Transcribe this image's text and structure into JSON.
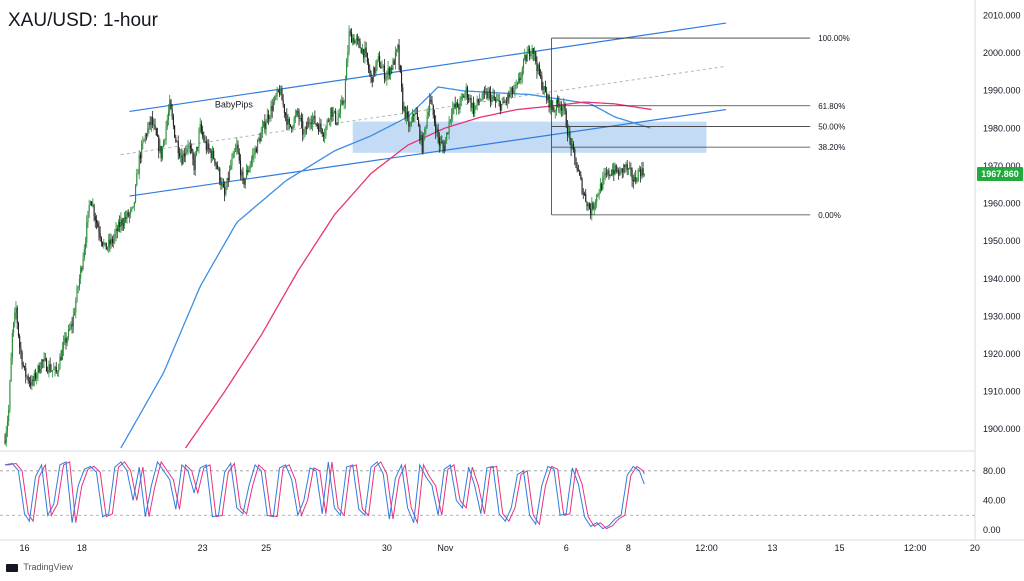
{
  "header": {
    "title": "XAU/USD: 1-hour"
  },
  "footer": {
    "brand": "TradingView"
  },
  "colors": {
    "up_candle": "#2a8c3a",
    "down_candle": "#1e1e1e",
    "channel": "#2f7be0",
    "zone": "#9cc3f0",
    "ma_fast": "#3d8fe3",
    "ma_slow": "#e8337a",
    "price_tag": "#22ab3c",
    "stoch_k": "#2f7be0",
    "stoch_d": "#e8337a"
  },
  "icons": {
    "brand": "tradingview-logo-icon"
  },
  "chart_data": [
    {
      "type": "candlestick",
      "title": "XAU/USD: 1-hour",
      "current_price": {
        "value": 1967.86,
        "label": "1967.860"
      },
      "y_axis": {
        "range": [
          1895,
          2012
        ],
        "ticks": [
          1900,
          1910,
          1920,
          1930,
          1940,
          1950,
          1960,
          1970,
          1980,
          1990,
          2000,
          2010
        ],
        "tick_labels": [
          "1900.000",
          "1910.000",
          "1920.000",
          "1930.000",
          "1940.000",
          "1950.000",
          "1960.000",
          "1970.000",
          "1980.000",
          "1990.000",
          "2000.000",
          "2010.000"
        ]
      },
      "x_axis": {
        "labels": [
          "16",
          "18",
          "23",
          "25",
          "30",
          "Nov",
          "6",
          "8",
          "12:00",
          "13",
          "15",
          "12:00",
          "20"
        ],
        "label_index": [
          16,
          63,
          162,
          214,
          313,
          361,
          460,
          511,
          575,
          629,
          684,
          746,
          795
        ]
      },
      "price_path": {
        "index": [
          0,
          3,
          6,
          9,
          12,
          16,
          22,
          30,
          42,
          48,
          55,
          62,
          66,
          70,
          75,
          82,
          88,
          95,
          105,
          110,
          115,
          120,
          128,
          135,
          140,
          145,
          150,
          155,
          160,
          165,
          172,
          180,
          185,
          190,
          195,
          200,
          206,
          215,
          225,
          233,
          240,
          245,
          250,
          256,
          262,
          267,
          272,
          278,
          282,
          288,
          295,
          300,
          306,
          312,
          318,
          322,
          326,
          332,
          336,
          342,
          348,
          352,
          356,
          360,
          366,
          372,
          378,
          384,
          390,
          396,
          402,
          408,
          414,
          420,
          426,
          432,
          438,
          444,
          450,
          454,
          458,
          462,
          466,
          470,
          474,
          480,
          486,
          492,
          498,
          504,
          508,
          512,
          516,
          520,
          524
        ],
        "close": [
          1898.0,
          1905.0,
          1925.0,
          1932.0,
          1922.0,
          1915.0,
          1912.0,
          1918.0,
          1915.0,
          1922.0,
          1928.0,
          1942.0,
          1951.0,
          1962.0,
          1955.0,
          1948.0,
          1950.0,
          1955.0,
          1958.0,
          1972.0,
          1978.0,
          1982.0,
          1973.0,
          1986.0,
          1977.0,
          1972.0,
          1976.0,
          1970.0,
          1980.0,
          1975.0,
          1972.0,
          1962.0,
          1970.0,
          1975.0,
          1965.0,
          1970.0,
          1975.0,
          1983.0,
          1990.0,
          1980.0,
          1984.0,
          1978.0,
          1983.0,
          1981.0,
          1979.0,
          1985.0,
          1982.0,
          1988.0,
          2005.0,
          2003.0,
          2000.0,
          1993.0,
          1998.0,
          1994.0,
          1997.0,
          2001.0,
          1986.0,
          1980.0,
          1985.0,
          1975.0,
          1988.0,
          1982.0,
          1976.0,
          1975.0,
          1985.0,
          1986.0,
          1990.0,
          1985.0,
          1988.0,
          1989.0,
          1987.0,
          1986.0,
          1989.0,
          1991.0,
          1998.0,
          2002.0,
          1994.0,
          1988.0,
          1985.0,
          1987.0,
          1985.0,
          1978.0,
          1973.0,
          1968.0,
          1963.0,
          1958.0,
          1963.0,
          1967.0,
          1969.0,
          1968.0,
          1970.0,
          1968.0,
          1966.0,
          1969.0,
          1967.86
        ]
      },
      "rising_channel": {
        "upper": {
          "from": [
            102,
            1984.5
          ],
          "to": [
            591,
            2008.0
          ]
        },
        "lower": {
          "from": [
            102,
            1962.0
          ],
          "to": [
            591,
            1985.0
          ]
        },
        "midline": {
          "from": [
            95,
            1973.0
          ],
          "to": [
            591,
            1996.5
          ]
        }
      },
      "fibonacci": {
        "from_index": 448,
        "to_index": 660,
        "levels": [
          {
            "label": "100.00%",
            "value": 2004.0
          },
          {
            "label": "61.80%",
            "value": 1986.0
          },
          {
            "label": "50.00%",
            "value": 1980.5
          },
          {
            "label": "38.20%",
            "value": 1975.0
          },
          {
            "label": "0.00%",
            "value": 1957.0
          }
        ]
      },
      "zone": {
        "from_index": 285,
        "to_index": 575,
        "top": 1981.8,
        "bottom": 1973.5
      },
      "watermark_text": "BabyPips",
      "moving_averages": [
        {
          "name": "fast",
          "index": [
            95,
            130,
            160,
            190,
            230,
            270,
            300,
            330,
            355,
            375,
            400,
            430,
            460,
            480,
            500,
            530
          ],
          "value": [
            1895.0,
            1915.0,
            1938.0,
            1955.0,
            1966.0,
            1974.0,
            1978.0,
            1983.0,
            1991.0,
            1990.0,
            1989.5,
            1989.0,
            1987.5,
            1986.5,
            1983.0,
            1980.0
          ]
        },
        {
          "name": "slow",
          "index": [
            148,
            180,
            210,
            240,
            270,
            300,
            330,
            360,
            390,
            420,
            450,
            475,
            500,
            530
          ],
          "value": [
            1895.0,
            1910.0,
            1925.0,
            1942.0,
            1957.0,
            1968.0,
            1975.5,
            1980.0,
            1983.0,
            1985.0,
            1986.0,
            1987.0,
            1986.5,
            1985.0
          ]
        }
      ]
    },
    {
      "type": "line",
      "name": "stochastic",
      "y_axis": {
        "range": [
          -8,
          100
        ],
        "ticks": [
          0,
          40,
          80
        ],
        "tick_labels": [
          "0.00",
          "40.00",
          "80.00"
        ]
      },
      "levels": [
        80,
        20
      ],
      "k": {
        "index": [
          0,
          6,
          11,
          16,
          20,
          25,
          30,
          35,
          40,
          45,
          50,
          55,
          60,
          65,
          70,
          75,
          80,
          85,
          90,
          95,
          100,
          105,
          110,
          115,
          120,
          125,
          130,
          135,
          140,
          145,
          150,
          155,
          160,
          165,
          170,
          175,
          180,
          185,
          190,
          195,
          200,
          205,
          210,
          215,
          220,
          225,
          230,
          235,
          240,
          245,
          250,
          255,
          260,
          265,
          270,
          275,
          280,
          285,
          290,
          295,
          300,
          305,
          310,
          315,
          320,
          325,
          330,
          335,
          340,
          345,
          350,
          355,
          360,
          365,
          370,
          375,
          380,
          385,
          390,
          395,
          400,
          405,
          410,
          415,
          420,
          425,
          430,
          435,
          440,
          445,
          450,
          455,
          460,
          465,
          470,
          475,
          480,
          485,
          490,
          495,
          500,
          505,
          510,
          515,
          520,
          524
        ],
        "value": [
          88,
          90,
          80,
          22,
          12,
          72,
          88,
          20,
          35,
          88,
          92,
          10,
          60,
          82,
          86,
          78,
          18,
          22,
          85,
          92,
          80,
          40,
          85,
          18,
          60,
          92,
          80,
          68,
          28,
          88,
          80,
          50,
          84,
          88,
          18,
          20,
          78,
          90,
          30,
          22,
          60,
          88,
          80,
          20,
          18,
          84,
          88,
          68,
          20,
          40,
          84,
          80,
          22,
          92,
          30,
          20,
          85,
          88,
          28,
          20,
          85,
          92,
          76,
          15,
          70,
          88,
          30,
          10,
          88,
          72,
          60,
          20,
          82,
          88,
          40,
          30,
          85,
          60,
          22,
          84,
          86,
          22,
          12,
          30,
          75,
          80,
          20,
          8,
          60,
          86,
          82,
          20,
          22,
          84,
          62,
          18,
          5,
          10,
          2,
          6,
          15,
          20,
          74,
          86,
          80,
          62
        ]
      }
    }
  ]
}
